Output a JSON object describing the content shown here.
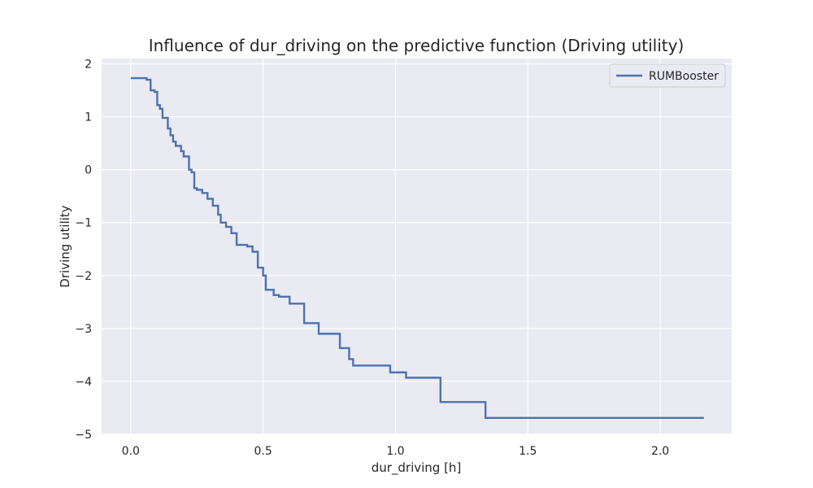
{
  "chart_data": {
    "type": "line",
    "step": true,
    "title": "Influence of dur_driving on the predictive function (Driving utility)",
    "xlabel": "dur_driving [h]",
    "ylabel": "Driving utility",
    "xlim": [
      -0.11,
      2.27
    ],
    "ylim": [
      -5.0,
      2.1
    ],
    "xticks": [
      0.0,
      0.5,
      1.0,
      1.5,
      2.0
    ],
    "xtick_labels": [
      "0.0",
      "0.5",
      "1.0",
      "1.5",
      "2.0"
    ],
    "yticks": [
      2,
      1,
      0,
      -1,
      -2,
      -3,
      -4,
      -5
    ],
    "ytick_labels": [
      "2",
      "1",
      "0",
      "−1",
      "−2",
      "−3",
      "−4",
      "−5"
    ],
    "grid": true,
    "legend": "top-right",
    "colors": {
      "line": "#4c72b0",
      "plot_bg": "#eaeaf2",
      "grid": "#ffffff"
    },
    "series": [
      {
        "name": "RUMBooster",
        "x": [
          0.0,
          0.06,
          0.075,
          0.09,
          0.1,
          0.11,
          0.12,
          0.14,
          0.15,
          0.16,
          0.17,
          0.19,
          0.2,
          0.22,
          0.23,
          0.24,
          0.25,
          0.27,
          0.29,
          0.31,
          0.33,
          0.34,
          0.36,
          0.38,
          0.4,
          0.44,
          0.46,
          0.48,
          0.5,
          0.51,
          0.54,
          0.56,
          0.6,
          0.655,
          0.71,
          0.79,
          0.825,
          0.84,
          0.98,
          1.04,
          1.17,
          1.34,
          2.165
        ],
        "y": [
          1.73,
          1.7,
          1.5,
          1.47,
          1.22,
          1.15,
          0.98,
          0.78,
          0.65,
          0.53,
          0.45,
          0.35,
          0.25,
          0.0,
          -0.05,
          -0.35,
          -0.38,
          -0.44,
          -0.55,
          -0.68,
          -0.85,
          -1.0,
          -1.08,
          -1.2,
          -1.42,
          -1.45,
          -1.55,
          -1.85,
          -2.0,
          -2.27,
          -2.37,
          -2.4,
          -2.53,
          -2.9,
          -3.1,
          -3.37,
          -3.58,
          -3.7,
          -3.83,
          -3.93,
          -4.39,
          -4.69,
          -4.69
        ]
      }
    ]
  }
}
